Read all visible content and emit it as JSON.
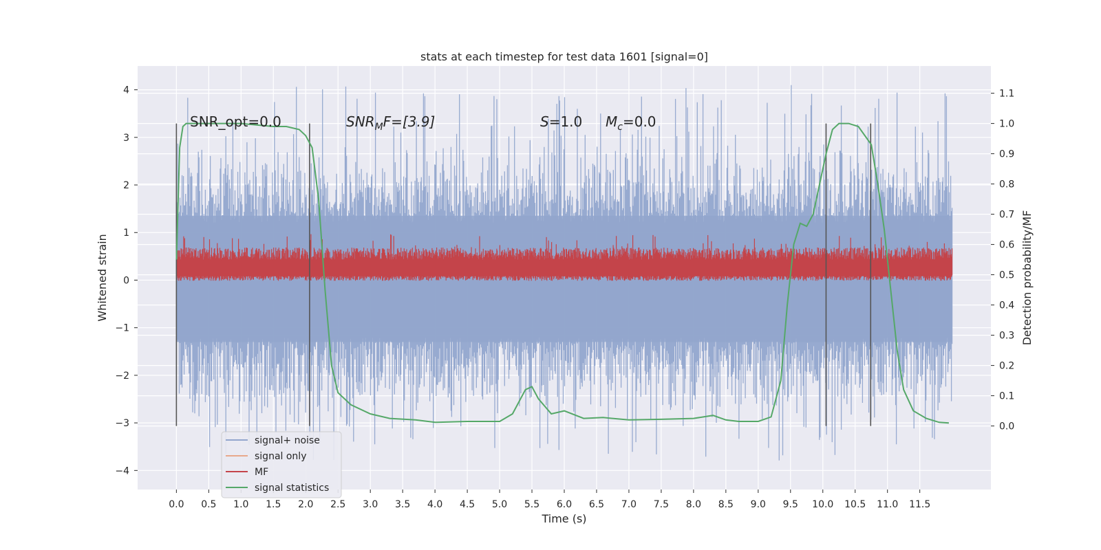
{
  "chart_data": {
    "type": "line",
    "title": "stats at each timestep for test data 1601 [signal=0]",
    "xlabel": "Time (s)",
    "ylabel": "Whitened strain",
    "ylabel_right": "Detection probability/MF",
    "xlim": [
      -0.6,
      12.6
    ],
    "ylim": [
      -4.4,
      4.5
    ],
    "ylim_right": [
      -0.21,
      1.19
    ],
    "x_ticks": [
      0.0,
      0.5,
      1.0,
      1.5,
      2.0,
      2.5,
      3.0,
      3.5,
      4.0,
      4.5,
      5.0,
      5.5,
      6.0,
      6.5,
      7.0,
      7.5,
      8.0,
      8.5,
      9.0,
      9.5,
      10.0,
      10.5,
      11.0,
      11.5
    ],
    "x_tick_labels": [
      "0.0",
      "0.5",
      "1.0",
      "1.5",
      "2.0",
      "2.5",
      "3.0",
      "3.5",
      "4.0",
      "4.5",
      "5.0",
      "5.5",
      "6.0",
      "6.5",
      "7.0",
      "7.5",
      "8.0",
      "8.5",
      "9.0",
      "9.5",
      "10.0",
      "10.5",
      "11.0",
      "11.5"
    ],
    "y_ticks": [
      4,
      3,
      2,
      1,
      0,
      -1,
      -2,
      -3,
      -4
    ],
    "y_tick_labels": [
      "4",
      "3",
      "2",
      "1",
      "0",
      "−1",
      "−2",
      "−3",
      "−4"
    ],
    "y_right_ticks": [
      1.1,
      1.0,
      0.9,
      0.8,
      0.7,
      0.6,
      0.5,
      0.4,
      0.3,
      0.2,
      0.1,
      0.0
    ],
    "y_right_tick_labels": [
      "1.1",
      "1.0",
      "0.9",
      "0.8",
      "0.7",
      "0.6",
      "0.5",
      "0.4",
      "0.3",
      "0.2",
      "0.1",
      "0.0"
    ],
    "grid": true,
    "legend_position": "lower-left",
    "legend": [
      {
        "label": "signal+ noise",
        "color": "#92a6cd"
      },
      {
        "label": "signal only",
        "color": "#e8a88a"
      },
      {
        "label": "MF",
        "color": "#c4444a"
      },
      {
        "label": "signal statistics",
        "color": "#55a868"
      }
    ],
    "annotations": {
      "snr_opt": "SNR_opt=0.0",
      "snr_mf_label": "SNR",
      "snr_mf_sub": "M",
      "snr_mf_rest": "F=[3.9]",
      "s_label": "S",
      "s_value": "=1.0",
      "mc_label": "M",
      "mc_sub": "c",
      "mc_value": "=0.0"
    },
    "series": [
      {
        "name": "signal+ noise",
        "axis": "left",
        "style": "noise-band",
        "x_range": [
          0.0,
          12.0
        ],
        "envelope_typical": [
          -2.2,
          2.2
        ],
        "envelope_peak": [
          -3.8,
          4.1
        ],
        "color": "#92a6cd"
      },
      {
        "name": "MF",
        "axis": "right",
        "style": "noise-band",
        "x_range": [
          0.0,
          12.0
        ],
        "envelope_typical": [
          0.49,
          0.57
        ],
        "envelope_peak": [
          0.48,
          0.64
        ],
        "color": "#c4444a"
      },
      {
        "name": "signal statistics",
        "axis": "right",
        "color": "#55a868",
        "x": [
          0.0,
          0.05,
          0.1,
          0.15,
          0.2,
          0.3,
          0.5,
          1.0,
          1.5,
          1.7,
          1.9,
          2.0,
          2.1,
          2.2,
          2.3,
          2.4,
          2.5,
          2.7,
          3.0,
          3.3,
          3.7,
          4.0,
          4.5,
          5.0,
          5.2,
          5.4,
          5.5,
          5.6,
          5.8,
          6.0,
          6.3,
          6.6,
          7.0,
          7.5,
          8.0,
          8.3,
          8.5,
          8.7,
          9.0,
          9.2,
          9.35,
          9.45,
          9.55,
          9.65,
          9.75,
          9.85,
          9.95,
          10.05,
          10.15,
          10.25,
          10.4,
          10.55,
          10.75,
          10.85,
          10.95,
          11.05,
          11.15,
          11.25,
          11.4,
          11.6,
          11.8,
          11.95
        ],
        "y": [
          0.55,
          0.92,
          0.99,
          1.0,
          1.0,
          1.0,
          1.0,
          1.0,
          0.99,
          0.99,
          0.98,
          0.96,
          0.92,
          0.75,
          0.45,
          0.2,
          0.11,
          0.07,
          0.04,
          0.025,
          0.02,
          0.012,
          0.015,
          0.015,
          0.04,
          0.12,
          0.13,
          0.09,
          0.04,
          0.05,
          0.025,
          0.028,
          0.02,
          0.022,
          0.025,
          0.035,
          0.02,
          0.015,
          0.015,
          0.03,
          0.15,
          0.4,
          0.6,
          0.67,
          0.66,
          0.7,
          0.8,
          0.9,
          0.98,
          1.0,
          1.0,
          0.99,
          0.93,
          0.8,
          0.65,
          0.45,
          0.25,
          0.12,
          0.05,
          0.025,
          0.012,
          0.01
        ]
      }
    ],
    "vertical_markers": [
      {
        "x": 0.0,
        "color": "#555555"
      },
      {
        "x": 2.06,
        "color": "#555555"
      },
      {
        "x": 10.05,
        "color": "#555555"
      },
      {
        "x": 10.74,
        "color": "#555555"
      }
    ]
  }
}
